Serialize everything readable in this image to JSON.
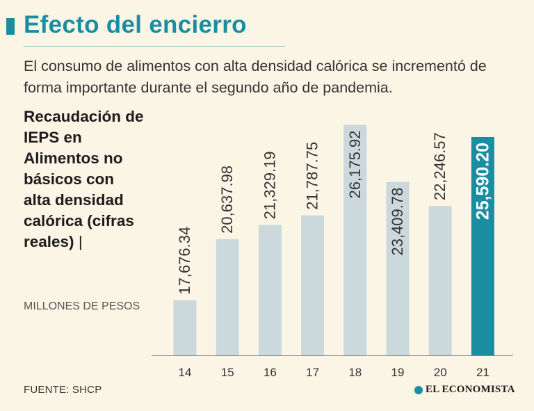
{
  "header": {
    "title": "Efecto del encierro",
    "subtitle": "El consumo de alimentos con alta densidad calórica se incrementó de forma importante durante el segundo año de pandemia."
  },
  "sidebar": {
    "chart_title": "Recaudación de IEPS en Alimentos no básicos con alta densidad calórica (cifras reales)",
    "separator": "|",
    "units": "MILLONES DE PESOS"
  },
  "footer": {
    "source": "FUENTE: SHCP",
    "brand": "EL ECONOMISTA"
  },
  "colors": {
    "accent": "#1a8ea0",
    "bar": "#ccd9dc",
    "highlight": "#1a8ea0",
    "background": "#fbf5e6"
  },
  "chart_data": {
    "type": "bar",
    "title": "Recaudación de IEPS en Alimentos no básicos con alta densidad calórica (cifras reales)",
    "xlabel": "",
    "ylabel": "MILLONES DE PESOS",
    "categories": [
      "14",
      "15",
      "16",
      "17",
      "18",
      "19",
      "20",
      "21"
    ],
    "values": [
      17676.34,
      20637.98,
      21329.19,
      21787.75,
      26175.92,
      23409.78,
      22246.57,
      25590.2
    ],
    "value_labels": [
      "17,676.34",
      "20,637.98",
      "21,329.19",
      "21,787.75",
      "26,175.92",
      "23,409.78",
      "22,246.57",
      "25,590.20"
    ],
    "highlight_index": 7,
    "ylim": [
      15000,
      26500
    ],
    "grid": false
  }
}
